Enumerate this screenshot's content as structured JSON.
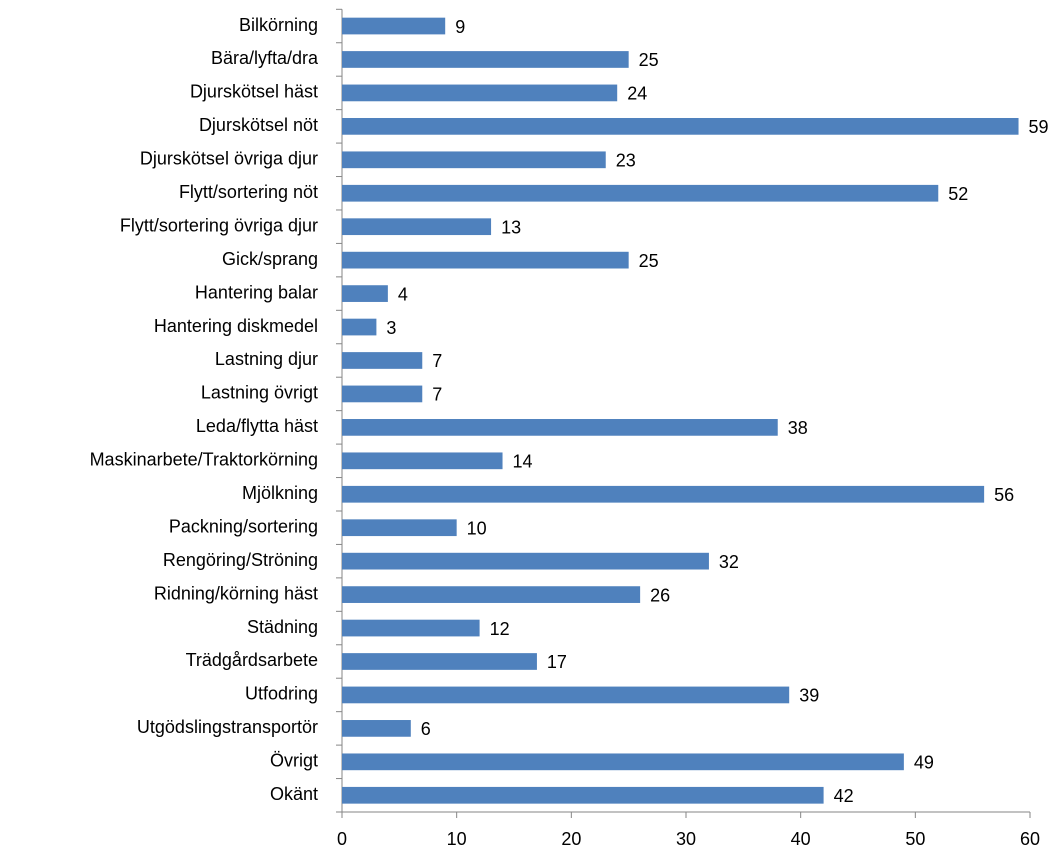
{
  "chart_data": {
    "type": "bar",
    "orientation": "horizontal",
    "categories": [
      "Bilkörning",
      "Bära/lyfta/dra",
      "Djurskötsel häst",
      "Djurskötsel nöt",
      "Djurskötsel övriga djur",
      "Flytt/sortering nöt",
      "Flytt/sortering övriga djur",
      "Gick/sprang",
      "Hantering balar",
      "Hantering diskmedel",
      "Lastning djur",
      "Lastning övrigt",
      "Leda/flytta häst",
      "Maskinarbete/Traktorkörning",
      "Mjölkning",
      "Packning/sortering",
      "Rengöring/Ströning",
      "Ridning/körning häst",
      "Städning",
      "Trädgårdsarbete",
      "Utfodring",
      "Utgödslingstransportör",
      "Övrigt",
      "Okänt"
    ],
    "values": [
      9,
      25,
      24,
      59,
      23,
      52,
      13,
      25,
      4,
      3,
      7,
      7,
      38,
      14,
      56,
      10,
      32,
      26,
      12,
      17,
      39,
      6,
      49,
      42
    ],
    "color": "#4f81bd",
    "xlim": [
      0,
      60
    ],
    "xticks": [
      0,
      10,
      20,
      30,
      40,
      50,
      60
    ],
    "grid": false
  }
}
